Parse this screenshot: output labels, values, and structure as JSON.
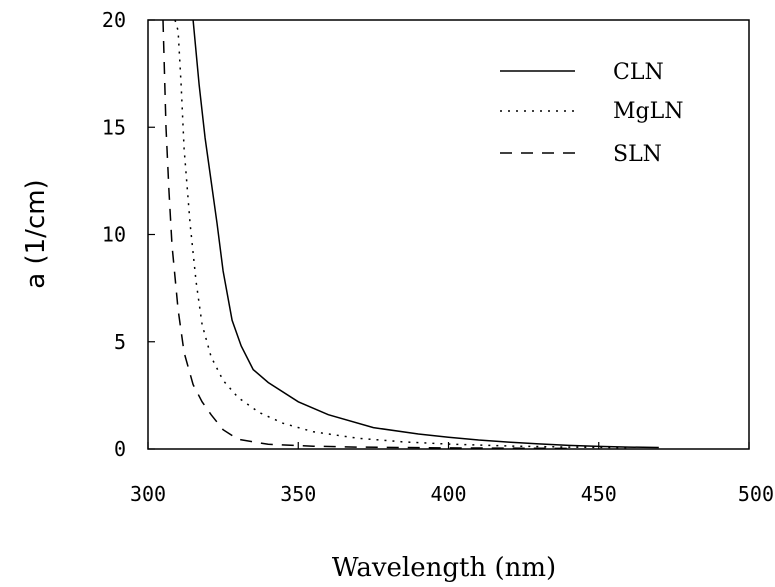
{
  "chart_data": {
    "type": "line",
    "title": "",
    "xlabel": "Wavelength (nm)",
    "ylabel": "a (1/cm)",
    "xlim": [
      300,
      500
    ],
    "ylim": [
      0,
      20
    ],
    "x_ticks": [
      "300",
      "350",
      "400",
      "450",
      "500"
    ],
    "y_ticks": [
      "0",
      "5",
      "10",
      "15",
      "20"
    ],
    "grid": false,
    "legend_position": "top-right",
    "series": [
      {
        "name": "CLN",
        "style": "solid",
        "color": "#000000",
        "x": [
          315,
          317,
          319,
          321,
          323,
          325,
          328,
          331,
          335,
          340,
          350,
          360,
          375,
          390,
          400,
          410,
          420,
          430,
          440,
          450,
          460,
          470
        ],
        "y": [
          20,
          17,
          14.5,
          12.5,
          10.5,
          8.3,
          6.0,
          4.8,
          3.7,
          3.1,
          2.2,
          1.6,
          1.0,
          0.7,
          0.55,
          0.42,
          0.32,
          0.24,
          0.17,
          0.12,
          0.09,
          0.07
        ]
      },
      {
        "name": "MgLN",
        "style": "dotted",
        "color": "#000000",
        "x": [
          309,
          310,
          311,
          312,
          314,
          316,
          318,
          321,
          325,
          330,
          337,
          345,
          355,
          370,
          385,
          400,
          420,
          440,
          460
        ],
        "y": [
          20,
          19.5,
          17.0,
          14.0,
          10.5,
          7.8,
          5.8,
          4.3,
          3.2,
          2.4,
          1.7,
          1.2,
          0.8,
          0.5,
          0.33,
          0.23,
          0.14,
          0.09,
          0.06
        ]
      },
      {
        "name": "SLN",
        "style": "dashed",
        "color": "#000000",
        "x": [
          305,
          306,
          307,
          308,
          310,
          312,
          315,
          318,
          321,
          325,
          330,
          340,
          355,
          370,
          400,
          440
        ],
        "y": [
          20,
          15.0,
          12.0,
          9.5,
          6.5,
          4.5,
          3.0,
          2.2,
          1.6,
          0.9,
          0.45,
          0.22,
          0.13,
          0.09,
          0.05,
          0.03
        ]
      }
    ]
  }
}
